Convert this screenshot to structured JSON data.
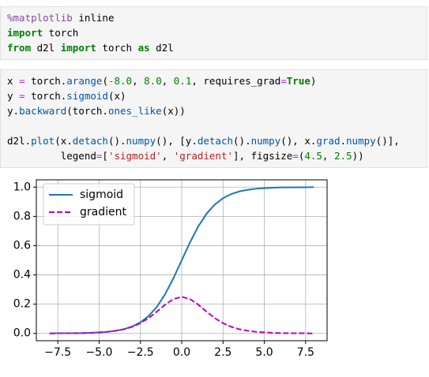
{
  "cells": [
    {
      "lines": [
        [
          {
            "text": "%matplotlib",
            "color": "#8a4a9a"
          },
          {
            "text": " inline"
          }
        ],
        [
          {
            "text": "import",
            "color": "#008000",
            "bold": true
          },
          {
            "text": " torch"
          }
        ],
        [
          {
            "text": "from",
            "color": "#008000",
            "bold": true
          },
          {
            "text": " d2l "
          },
          {
            "text": "import",
            "color": "#008000",
            "bold": true
          },
          {
            "text": " torch "
          },
          {
            "text": "as",
            "color": "#008000",
            "bold": true
          },
          {
            "text": " d2l"
          }
        ]
      ]
    },
    {
      "lines": [
        [
          {
            "text": "x "
          },
          {
            "text": "=",
            "color": "#aa22ff"
          },
          {
            "text": " torch."
          },
          {
            "text": "arange",
            "color": "#0055aa"
          },
          {
            "text": "("
          },
          {
            "text": "-",
            "color": "#aa22ff"
          },
          {
            "text": "8.0",
            "color": "#008000"
          },
          {
            "text": ", "
          },
          {
            "text": "8.0",
            "color": "#008000"
          },
          {
            "text": ", "
          },
          {
            "text": "0.1",
            "color": "#008000"
          },
          {
            "text": ", requires_grad"
          },
          {
            "text": "=",
            "color": "#aa22ff"
          },
          {
            "text": "True",
            "color": "#008000",
            "bold": true
          },
          {
            "text": ")"
          }
        ],
        [
          {
            "text": "y "
          },
          {
            "text": "=",
            "color": "#aa22ff"
          },
          {
            "text": " torch."
          },
          {
            "text": "sigmoid",
            "color": "#0055aa"
          },
          {
            "text": "(x)"
          }
        ],
        [
          {
            "text": "y."
          },
          {
            "text": "backward",
            "color": "#0055aa"
          },
          {
            "text": "(torch."
          },
          {
            "text": "ones_like",
            "color": "#0055aa"
          },
          {
            "text": "(x))"
          }
        ],
        [],
        [
          {
            "text": "d2l."
          },
          {
            "text": "plot",
            "color": "#0055aa"
          },
          {
            "text": "(x."
          },
          {
            "text": "detach",
            "color": "#0055aa"
          },
          {
            "text": "()."
          },
          {
            "text": "numpy",
            "color": "#0055aa"
          },
          {
            "text": "(), [y."
          },
          {
            "text": "detach",
            "color": "#0055aa"
          },
          {
            "text": "()."
          },
          {
            "text": "numpy",
            "color": "#0055aa"
          },
          {
            "text": "(), x."
          },
          {
            "text": "grad",
            "color": "#0055aa"
          },
          {
            "text": "."
          },
          {
            "text": "numpy",
            "color": "#0055aa"
          },
          {
            "text": "()],"
          }
        ],
        [
          {
            "text": "         legend"
          },
          {
            "text": "=",
            "color": "#aa22ff"
          },
          {
            "text": "["
          },
          {
            "text": "'sigmoid'",
            "color": "#ba2121"
          },
          {
            "text": ", "
          },
          {
            "text": "'gradient'",
            "color": "#ba2121"
          },
          {
            "text": "], figsize"
          },
          {
            "text": "=",
            "color": "#aa22ff"
          },
          {
            "text": "("
          },
          {
            "text": "4.5",
            "color": "#008000"
          },
          {
            "text": ", "
          },
          {
            "text": "2.5",
            "color": "#008000"
          },
          {
            "text": "))"
          }
        ]
      ]
    }
  ],
  "chart_data": {
    "type": "line",
    "x": [
      -8,
      -7.5,
      -7,
      -6.5,
      -6,
      -5.5,
      -5,
      -4.5,
      -4,
      -3.5,
      -3,
      -2.5,
      -2,
      -1.5,
      -1,
      -0.5,
      0,
      0.5,
      1,
      1.5,
      2,
      2.5,
      3,
      3.5,
      4,
      4.5,
      5,
      5.5,
      6,
      6.5,
      7,
      7.5,
      8
    ],
    "series": [
      {
        "name": "sigmoid",
        "color": "#1f77b4",
        "dash": false,
        "values": [
          0.0,
          0.001,
          0.001,
          0.002,
          0.002,
          0.004,
          0.007,
          0.011,
          0.018,
          0.029,
          0.047,
          0.076,
          0.119,
          0.182,
          0.269,
          0.378,
          0.5,
          0.622,
          0.731,
          0.818,
          0.881,
          0.924,
          0.953,
          0.971,
          0.982,
          0.989,
          0.993,
          0.996,
          0.998,
          0.998,
          0.999,
          0.999,
          1.0
        ]
      },
      {
        "name": "gradient",
        "color": "#bf00bf",
        "dash": true,
        "values": [
          0.0,
          0.001,
          0.001,
          0.001,
          0.002,
          0.004,
          0.007,
          0.011,
          0.018,
          0.028,
          0.045,
          0.07,
          0.105,
          0.149,
          0.197,
          0.235,
          0.25,
          0.235,
          0.197,
          0.149,
          0.105,
          0.07,
          0.045,
          0.028,
          0.018,
          0.011,
          0.007,
          0.004,
          0.002,
          0.001,
          0.001,
          0.001,
          0.0
        ]
      }
    ],
    "xlim": [
      -8.8,
      8.8
    ],
    "ylim": [
      -0.05,
      1.05
    ],
    "xticks": [
      {
        "value": -7.5,
        "label": "−7.5"
      },
      {
        "value": -5,
        "label": "−5.0"
      },
      {
        "value": -2.5,
        "label": "−2.5"
      },
      {
        "value": 0,
        "label": "0.0"
      },
      {
        "value": 2.5,
        "label": "2.5"
      },
      {
        "value": 5,
        "label": "5.0"
      },
      {
        "value": 7.5,
        "label": "7.5"
      }
    ],
    "yticks": [
      {
        "value": 0,
        "label": "0.0"
      },
      0.2,
      0.4,
      0.6,
      0.8,
      {
        "value": 1,
        "label": "1.0"
      }
    ],
    "grid": true,
    "legend": "upper left"
  }
}
